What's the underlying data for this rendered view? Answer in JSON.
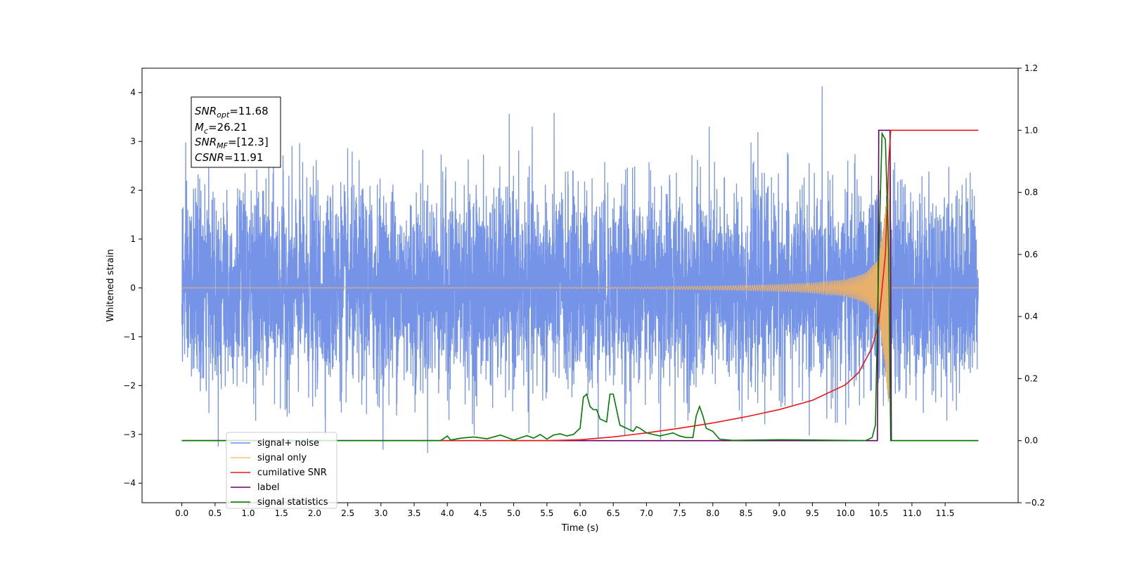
{
  "chart_data": {
    "type": "line",
    "xlabel": "Time (s)",
    "ylabel": "Whitened strain",
    "xlim": [
      -0.6,
      12.6
    ],
    "ylim": [
      -4.4,
      4.5
    ],
    "y2lim": [
      -0.2,
      1.2
    ],
    "grid": false,
    "legend_placement": "lower-left",
    "x_ticks": [
      "0.0",
      "0.5",
      "1.0",
      "1.5",
      "2.0",
      "2.5",
      "3.0",
      "3.5",
      "4.0",
      "4.5",
      "5.0",
      "5.5",
      "6.0",
      "6.5",
      "7.0",
      "7.5",
      "8.0",
      "8.5",
      "9.0",
      "9.5",
      "10.0",
      "10.5",
      "11.0",
      "11.5"
    ],
    "y_ticks": [
      4,
      3,
      2,
      1,
      0,
      -1,
      -2,
      -3,
      -4
    ],
    "y_tick_labels": [
      "4",
      "3",
      "2",
      "1",
      "0",
      "−1",
      "−2",
      "−3",
      "−4"
    ],
    "y2_ticks": [
      1.2,
      1.0,
      0.8,
      0.6,
      0.4,
      0.2,
      0.0,
      -0.2
    ],
    "y2_tick_labels": [
      "1.2",
      "1.0",
      "0.8",
      "0.6",
      "0.4",
      "0.2",
      "0.0",
      "−0.2"
    ],
    "annotation": {
      "snr_opt": {
        "sym": "SNR",
        "sub": "opt",
        "value": "=11.68"
      },
      "mc": {
        "sym": "M",
        "sub": "c",
        "value": "=26.21"
      },
      "snr_mf": {
        "sym": "SNR",
        "sub": "MF",
        "value": "=[12.3]"
      },
      "csnr": {
        "sym": "CSNR",
        "value": "=11.91"
      }
    },
    "legend": [
      {
        "label": "signal+ noise",
        "color": "#6f8ee6"
      },
      {
        "label": "signal only",
        "color": "#ffc46b"
      },
      {
        "label": "cumilative SNR",
        "color": "#e8191a"
      },
      {
        "label": "label",
        "color": "#6a006a"
      },
      {
        "label": "signal statistics",
        "color": "#007a00"
      }
    ],
    "series": [
      {
        "name": "signal+ noise",
        "axis": "left",
        "color": "#6f8ee6",
        "description": "whitened noise, approx Gaussian sigma 1, peaks near +/-4",
        "x_range": [
          0.0,
          12.0
        ],
        "peak_max": 4.13,
        "peak_min": -3.98
      },
      {
        "name": "signal only",
        "axis": "left",
        "color": "#e8b06a",
        "description": "chirp waveform",
        "envelope": {
          "x": [
            0,
            5.5,
            7.0,
            8.0,
            9.0,
            9.5,
            10.0,
            10.3,
            10.5,
            10.6,
            10.65,
            10.67,
            12.0
          ],
          "amp": [
            0.002,
            0.005,
            0.02,
            0.04,
            0.07,
            0.1,
            0.17,
            0.3,
            0.6,
            1.6,
            2.5,
            0,
            0
          ]
        }
      },
      {
        "name": "cumilative SNR",
        "axis": "right",
        "color": "#e8191a",
        "x": [
          0,
          5.5,
          6.0,
          6.5,
          7.0,
          7.5,
          8.0,
          8.5,
          9.0,
          9.5,
          10.0,
          10.2,
          10.4,
          10.5,
          10.6,
          10.65,
          10.68,
          12.0
        ],
        "y": [
          0,
          0.0,
          0.003,
          0.012,
          0.025,
          0.04,
          0.057,
          0.077,
          0.1,
          0.13,
          0.18,
          0.22,
          0.3,
          0.38,
          0.6,
          0.9,
          1.0,
          1.0
        ]
      },
      {
        "name": "label",
        "axis": "right",
        "color": "#6a006a",
        "x": [
          0,
          10.48,
          10.5,
          10.67,
          10.69,
          12.0
        ],
        "y": [
          0,
          0,
          1.0,
          1.0,
          0,
          0
        ]
      },
      {
        "name": "signal statistics",
        "axis": "right",
        "color": "#007a00",
        "x": [
          0,
          3.9,
          4.0,
          4.05,
          4.2,
          4.4,
          4.6,
          4.8,
          4.9,
          5.0,
          5.2,
          5.3,
          5.4,
          5.5,
          5.6,
          5.7,
          5.8,
          5.9,
          6.0,
          6.05,
          6.1,
          6.15,
          6.2,
          6.25,
          6.3,
          6.4,
          6.45,
          6.5,
          6.55,
          6.6,
          6.7,
          6.8,
          6.85,
          6.9,
          7.0,
          7.1,
          7.2,
          7.3,
          7.4,
          7.5,
          7.6,
          7.7,
          7.75,
          7.8,
          7.85,
          7.9,
          8.0,
          8.1,
          8.2,
          8.3,
          9.0,
          9.5,
          10.3,
          10.4,
          10.45,
          10.5,
          10.55,
          10.6,
          10.65,
          10.68,
          12.0
        ],
        "y": [
          0,
          0,
          0.015,
          0.002,
          0.008,
          0.012,
          0.006,
          0.018,
          0.01,
          0.002,
          0.016,
          0.008,
          0.02,
          0.005,
          0.018,
          0.022,
          0.015,
          0.02,
          0.04,
          0.14,
          0.15,
          0.11,
          0.1,
          0.1,
          0.07,
          0.06,
          0.15,
          0.15,
          0.1,
          0.05,
          0.04,
          0.03,
          0.045,
          0.04,
          0.025,
          0.02,
          0.015,
          0.02,
          0.025,
          0.015,
          0.01,
          0.01,
          0.08,
          0.11,
          0.08,
          0.04,
          0.03,
          0.005,
          0.003,
          0.001,
          0.003,
          0.002,
          0.0,
          0.01,
          0.05,
          0.6,
          0.99,
          0.97,
          0.6,
          0.0,
          0.0
        ]
      }
    ]
  }
}
